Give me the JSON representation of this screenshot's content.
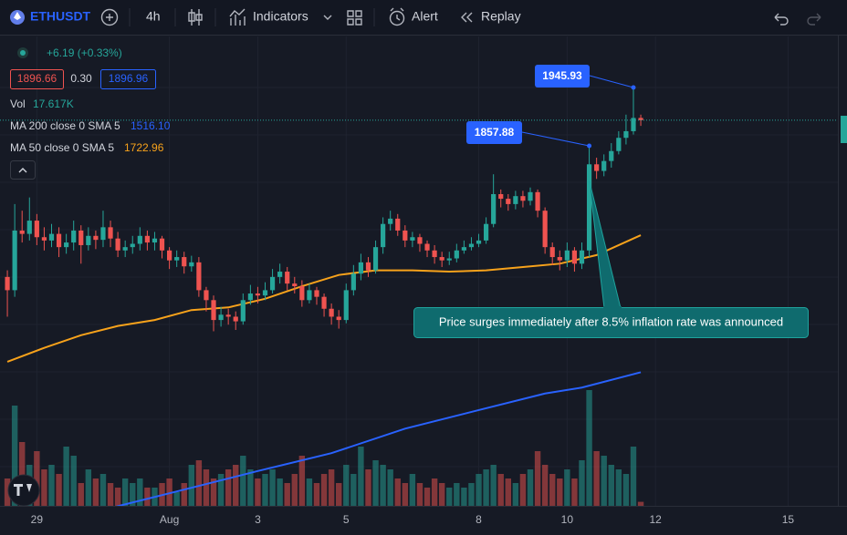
{
  "toolbar": {
    "symbol": "ETHUSDT",
    "interval": "4h",
    "indicators": "Indicators",
    "alert": "Alert",
    "replay": "Replay"
  },
  "header": {
    "change": "+6.19 (+0.33%)",
    "spread": "0.30",
    "ask": "1896.96",
    "vol_label": "Vol",
    "vol_value": "17.617K"
  },
  "chart_data": {
    "type": "candlestick",
    "up_color": "#26a69a",
    "down_color": "#ef5350",
    "xlim": [
      -1,
      114
    ],
    "xticks": [
      {
        "value": 4,
        "label": "29"
      },
      {
        "value": 22,
        "label": "Aug"
      },
      {
        "value": 34,
        "label": "3"
      },
      {
        "value": 46,
        "label": "5"
      },
      {
        "value": 64,
        "label": "8"
      },
      {
        "value": 76,
        "label": "10"
      },
      {
        "value": 88,
        "label": "12"
      },
      {
        "value": 106,
        "label": "15"
      }
    ],
    "ylim": [
      1314.5,
      2023
    ],
    "open": [
      1660,
      1640,
      1730,
      1725,
      1745,
      1720,
      1715,
      1725,
      1705,
      1712,
      1730,
      1708,
      1722,
      1716,
      1735,
      1718,
      1700,
      1705,
      1710,
      1722,
      1712,
      1718,
      1700,
      1685,
      1690,
      1676,
      1682,
      1640,
      1625,
      1595,
      1603,
      1600,
      1593,
      1625,
      1635,
      1632,
      1640,
      1660,
      1668,
      1650,
      1646,
      1625,
      1640,
      1630,
      1612,
      1600,
      1595,
      1640,
      1665,
      1682,
      1670,
      1705,
      1740,
      1748,
      1730,
      1715,
      1720,
      1710,
      1700,
      1690,
      1685,
      1688,
      1700,
      1705,
      1710,
      1715,
      1740,
      1785,
      1778,
      1770,
      1782,
      1775,
      1788,
      1760,
      1705,
      1690,
      1685,
      1700,
      1680,
      1700,
      1830,
      1820,
      1835,
      1850,
      1870,
      1880,
      1900
    ],
    "high": [
      1670,
      1770,
      1760,
      1780,
      1755,
      1735,
      1740,
      1735,
      1725,
      1745,
      1738,
      1735,
      1730,
      1760,
      1745,
      1728,
      1715,
      1722,
      1735,
      1730,
      1728,
      1722,
      1705,
      1700,
      1698,
      1692,
      1690,
      1645,
      1632,
      1615,
      1612,
      1608,
      1635,
      1648,
      1645,
      1652,
      1672,
      1680,
      1675,
      1660,
      1655,
      1650,
      1645,
      1635,
      1620,
      1610,
      1650,
      1678,
      1695,
      1690,
      1715,
      1750,
      1760,
      1755,
      1738,
      1728,
      1725,
      1715,
      1708,
      1698,
      1698,
      1710,
      1715,
      1720,
      1725,
      1750,
      1815,
      1792,
      1785,
      1790,
      1790,
      1795,
      1792,
      1765,
      1712,
      1700,
      1712,
      1705,
      1712,
      1857.88,
      1840,
      1845,
      1862,
      1880,
      1905,
      1945.93,
      1905
    ],
    "low": [
      1600,
      1630,
      1712,
      1715,
      1708,
      1700,
      1705,
      1690,
      1695,
      1700,
      1680,
      1700,
      1702,
      1705,
      1705,
      1690,
      1690,
      1695,
      1700,
      1700,
      1700,
      1688,
      1672,
      1675,
      1665,
      1668,
      1630,
      1608,
      1578,
      1585,
      1588,
      1580,
      1588,
      1618,
      1620,
      1625,
      1635,
      1650,
      1640,
      1635,
      1615,
      1620,
      1618,
      1600,
      1588,
      1582,
      1590,
      1632,
      1655,
      1660,
      1665,
      1695,
      1730,
      1722,
      1705,
      1705,
      1698,
      1690,
      1680,
      1675,
      1678,
      1682,
      1695,
      1700,
      1705,
      1710,
      1735,
      1765,
      1760,
      1762,
      1765,
      1768,
      1750,
      1695,
      1678,
      1670,
      1675,
      1668,
      1672,
      1690,
      1808,
      1812,
      1825,
      1845,
      1860,
      1875,
      1888
    ],
    "close": [
      1640,
      1730,
      1725,
      1745,
      1720,
      1715,
      1725,
      1705,
      1712,
      1730,
      1708,
      1722,
      1716,
      1735,
      1718,
      1700,
      1705,
      1710,
      1722,
      1712,
      1718,
      1700,
      1685,
      1690,
      1676,
      1682,
      1640,
      1625,
      1595,
      1603,
      1600,
      1593,
      1625,
      1635,
      1632,
      1640,
      1660,
      1668,
      1650,
      1646,
      1625,
      1640,
      1630,
      1612,
      1600,
      1595,
      1640,
      1665,
      1682,
      1670,
      1705,
      1740,
      1748,
      1730,
      1715,
      1720,
      1710,
      1700,
      1690,
      1685,
      1688,
      1700,
      1705,
      1710,
      1715,
      1740,
      1785,
      1778,
      1770,
      1782,
      1775,
      1788,
      1760,
      1705,
      1690,
      1685,
      1700,
      1680,
      1700,
      1830,
      1820,
      1835,
      1850,
      1870,
      1880,
      1900,
      1896.66
    ],
    "volume_lim": [
      0,
      600000
    ],
    "volume": [
      120000,
      440000,
      280000,
      180000,
      240000,
      160000,
      180000,
      140000,
      260000,
      220000,
      100000,
      160000,
      120000,
      140000,
      100000,
      80000,
      120000,
      100000,
      120000,
      80000,
      80000,
      100000,
      120000,
      60000,
      100000,
      180000,
      200000,
      160000,
      120000,
      140000,
      160000,
      180000,
      220000,
      160000,
      120000,
      140000,
      160000,
      120000,
      100000,
      140000,
      220000,
      120000,
      100000,
      140000,
      160000,
      100000,
      180000,
      140000,
      260000,
      160000,
      200000,
      180000,
      160000,
      120000,
      100000,
      140000,
      100000,
      80000,
      120000,
      100000,
      80000,
      100000,
      80000,
      100000,
      140000,
      160000,
      180000,
      140000,
      120000,
      100000,
      140000,
      160000,
      240000,
      180000,
      140000,
      120000,
      160000,
      120000,
      200000,
      508000,
      240000,
      220000,
      180000,
      160000,
      140000,
      260000,
      17617
    ],
    "series": [
      {
        "name": "MA 200 close 0 SMA 5",
        "color": "#2962ff",
        "legend_value": "1516.10",
        "x": [
          10,
          15,
          24,
          34,
          44,
          54,
          64,
          73,
          78,
          86
        ],
        "values": [
          1300,
          1314,
          1339,
          1367,
          1394,
          1431,
          1459,
          1484,
          1493,
          1516.1
        ]
      },
      {
        "name": "MA 50 close 0 SMA 5",
        "color": "#f7a21b",
        "legend_value": "1722.96",
        "x": [
          0,
          5,
          10,
          15,
          20,
          25,
          30,
          35,
          40,
          45,
          50,
          55,
          60,
          65,
          70,
          75,
          80,
          85,
          86
        ],
        "values": [
          1532,
          1553,
          1572,
          1586,
          1595,
          1610,
          1614,
          1627,
          1646,
          1663,
          1670,
          1670,
          1668,
          1670,
          1675,
          1680,
          1693,
          1718,
          1722.96
        ]
      }
    ],
    "annotation": "Price surges immediately after 8.5% inflation rate was announced"
  }
}
